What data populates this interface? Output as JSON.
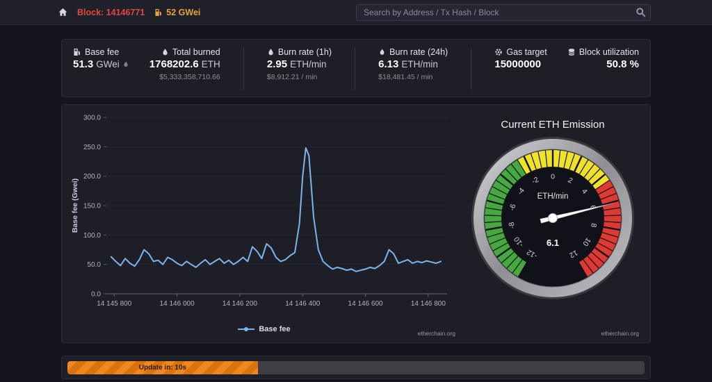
{
  "navbar": {
    "block_label": "Block: 14146771",
    "gas_label": "52 GWei",
    "search": {
      "placeholder": "Search by Address / Tx Hash / Block",
      "value": ""
    }
  },
  "stats": {
    "base_fee": {
      "label": "Base fee",
      "value": "51.3",
      "unit": "GWei"
    },
    "total_burned": {
      "label": "Total burned",
      "value": "1768202.6",
      "unit": "ETH",
      "sub": "$5,333,358,710.66"
    },
    "burn_rate_1h": {
      "label": "Burn rate (1h)",
      "value": "2.95",
      "unit": "ETH/min",
      "sub": "$8,912.21 / min"
    },
    "burn_rate_24h": {
      "label": "Burn rate (24h)",
      "value": "6.13",
      "unit": "ETH/min",
      "sub": "$18,481.45 / min"
    },
    "gas_target": {
      "label": "Gas target",
      "value": "15000000"
    },
    "block_utilization": {
      "label": "Block utilization",
      "value": "50.8 %"
    }
  },
  "chart_data": [
    {
      "type": "line",
      "title": "",
      "ylabel": "Base fee (Gwei)",
      "xlabel": "",
      "ylim": [
        0,
        300
      ],
      "yticks": [
        0,
        50,
        100,
        150,
        200,
        250,
        300
      ],
      "ytick_labels": [
        "0.0",
        "50.0",
        "100.0",
        "150.0",
        "200.0",
        "250.0",
        "300.0"
      ],
      "xlim": [
        14145775,
        14146860
      ],
      "xticks": [
        14145800,
        14146000,
        14146200,
        14146400,
        14146600,
        14146800
      ],
      "xtick_labels": [
        "14 145 800",
        "14 146 000",
        "14 146 200",
        "14 146 400",
        "14 146 600",
        "14 146 800"
      ],
      "grid": true,
      "legend_position": "bottom",
      "watermark": "etherchain.org",
      "series": [
        {
          "name": "Base fee",
          "color": "#7cb5ec",
          "points": [
            [
              14145790,
              63
            ],
            [
              14145805,
              55
            ],
            [
              14145820,
              48
            ],
            [
              14145835,
              60
            ],
            [
              14145850,
              52
            ],
            [
              14145865,
              47
            ],
            [
              14145880,
              58
            ],
            [
              14145895,
              75
            ],
            [
              14145910,
              68
            ],
            [
              14145925,
              55
            ],
            [
              14145940,
              57
            ],
            [
              14145955,
              50
            ],
            [
              14145970,
              62
            ],
            [
              14145985,
              58
            ],
            [
              14146000,
              52
            ],
            [
              14146015,
              48
            ],
            [
              14146030,
              55
            ],
            [
              14146045,
              50
            ],
            [
              14146060,
              45
            ],
            [
              14146075,
              52
            ],
            [
              14146090,
              58
            ],
            [
              14146105,
              50
            ],
            [
              14146120,
              55
            ],
            [
              14146135,
              60
            ],
            [
              14146150,
              52
            ],
            [
              14146165,
              57
            ],
            [
              14146180,
              50
            ],
            [
              14146195,
              55
            ],
            [
              14146210,
              62
            ],
            [
              14146225,
              55
            ],
            [
              14146240,
              80
            ],
            [
              14146255,
              72
            ],
            [
              14146270,
              60
            ],
            [
              14146285,
              85
            ],
            [
              14146300,
              78
            ],
            [
              14146315,
              62
            ],
            [
              14146330,
              55
            ],
            [
              14146345,
              58
            ],
            [
              14146360,
              65
            ],
            [
              14146375,
              70
            ],
            [
              14146390,
              120
            ],
            [
              14146400,
              200
            ],
            [
              14146410,
              248
            ],
            [
              14146420,
              235
            ],
            [
              14146435,
              130
            ],
            [
              14146450,
              75
            ],
            [
              14146465,
              55
            ],
            [
              14146480,
              48
            ],
            [
              14146495,
              42
            ],
            [
              14146510,
              45
            ],
            [
              14146525,
              43
            ],
            [
              14146540,
              40
            ],
            [
              14146555,
              42
            ],
            [
              14146570,
              38
            ],
            [
              14146585,
              40
            ],
            [
              14146600,
              42
            ],
            [
              14146615,
              45
            ],
            [
              14146630,
              43
            ],
            [
              14146645,
              48
            ],
            [
              14146660,
              55
            ],
            [
              14146675,
              75
            ],
            [
              14146690,
              68
            ],
            [
              14146705,
              52
            ],
            [
              14146720,
              55
            ],
            [
              14146735,
              58
            ],
            [
              14146750,
              52
            ],
            [
              14146765,
              55
            ],
            [
              14146780,
              53
            ],
            [
              14146795,
              56
            ],
            [
              14146810,
              54
            ],
            [
              14146825,
              52
            ],
            [
              14146840,
              55
            ]
          ]
        }
      ]
    },
    {
      "type": "gauge",
      "title": "Current ETH Emission",
      "unit": "ETH/min",
      "value": 6.1,
      "value_label": "6.1",
      "min": -12,
      "max": 12,
      "angle_span": 300,
      "major_step": 2,
      "minor_step": 0.5,
      "bands": [
        {
          "from": -12,
          "to": -2.5,
          "color": "#46a83f"
        },
        {
          "from": -2.5,
          "to": 4.5,
          "color": "#f0e12a"
        },
        {
          "from": 4.5,
          "to": 12,
          "color": "#de3a33"
        }
      ],
      "watermark": "etherchain.org"
    }
  ],
  "footer": {
    "update_label": "Update in: 10s",
    "progress_percent": 33
  }
}
